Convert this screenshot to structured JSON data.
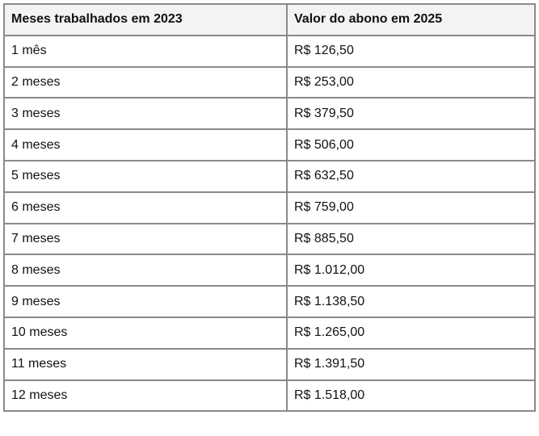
{
  "table": {
    "headers": [
      "Meses trabalhados em 2023",
      "Valor do abono em 2025"
    ],
    "rows": [
      [
        "1 mês",
        "R$ 126,50"
      ],
      [
        "2 meses",
        "R$ 253,00"
      ],
      [
        "3 meses",
        "R$ 379,50"
      ],
      [
        "4 meses",
        "R$ 506,00"
      ],
      [
        "5 meses",
        "R$ 632,50"
      ],
      [
        "6 meses",
        "R$ 759,00"
      ],
      [
        "7 meses",
        "R$ 885,50"
      ],
      [
        "8 meses",
        "R$ 1.012,00"
      ],
      [
        "9 meses",
        "R$ 1.138,50"
      ],
      [
        "10 meses",
        "R$ 1.265,00"
      ],
      [
        "11 meses",
        "R$ 1.391,50"
      ],
      [
        "12 meses",
        "R$ 1.518,00"
      ]
    ]
  }
}
